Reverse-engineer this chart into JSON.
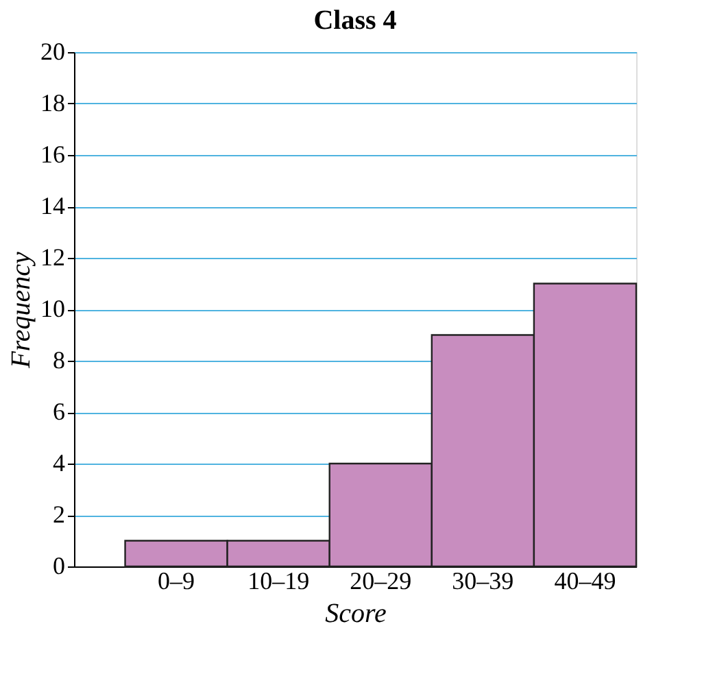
{
  "chart_data": {
    "type": "bar",
    "title": "Class 4",
    "xlabel": "Score",
    "ylabel": "Frequency",
    "categories": [
      "0–9",
      "10–19",
      "20–29",
      "30–39",
      "40–49"
    ],
    "values": [
      1,
      1,
      4,
      9,
      11
    ],
    "color": "#c88dbf",
    "ylim": [
      0,
      20
    ],
    "yticks": [
      0,
      2,
      4,
      6,
      8,
      10,
      12,
      14,
      16,
      18,
      20
    ],
    "grid": "y"
  }
}
